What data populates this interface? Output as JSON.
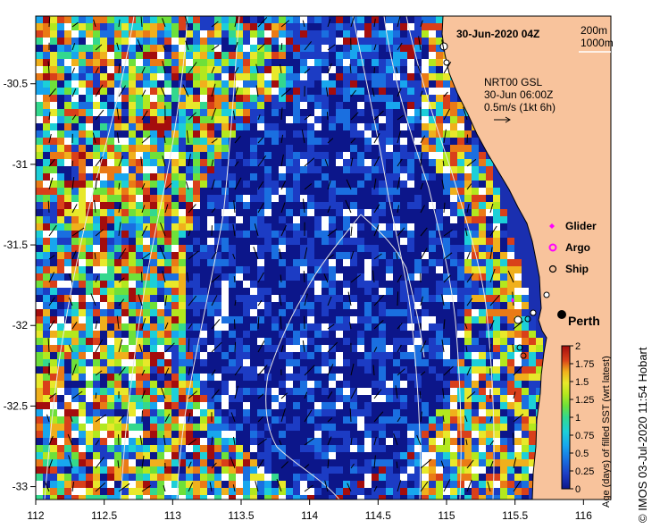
{
  "map": {
    "date_label": "30-Jun-2020 04Z",
    "contours": [
      "200m",
      "1000m"
    ],
    "current_info": [
      "NRT00 GSL",
      "30-Jun 06:00Z",
      "0.5m/s (1kt 6h)"
    ],
    "legend": [
      {
        "label": "Glider",
        "color": "#ff00ff",
        "symbol": "diamond"
      },
      {
        "label": "Argo",
        "color": "#ff00ff",
        "symbol": "circle"
      },
      {
        "label": "Ship",
        "color": "#000000",
        "symbol": "circle"
      }
    ],
    "city": "Perth",
    "colorbar": {
      "title": "Age (days) of filled SST (wrt latest)",
      "ticks": [
        "0",
        "0.25",
        "0.5",
        "0.75",
        "1",
        "1.25",
        "1.5",
        "1.75",
        "2"
      ]
    },
    "x_ticks": [
      "112",
      "112.5",
      "113",
      "113.5",
      "114",
      "114.5",
      "115",
      "115.5",
      "116"
    ],
    "y_ticks": [
      "-30.5",
      "-31",
      "-31.5",
      "-32",
      "-32.5",
      "-33"
    ],
    "credit": "© IMOS 03-Jul-2020 11:54 Hobart",
    "colors": {
      "land": "#f8c39c",
      "age_scale": [
        "#0c168a",
        "#1c3cc4",
        "#1a6fe0",
        "#18a6ee",
        "#1ccfd8",
        "#33d88e",
        "#6ee03a",
        "#b3e81e",
        "#e8e82a",
        "#f0b01c",
        "#ea7a16",
        "#d9401a",
        "#a40d0d"
      ]
    }
  }
}
